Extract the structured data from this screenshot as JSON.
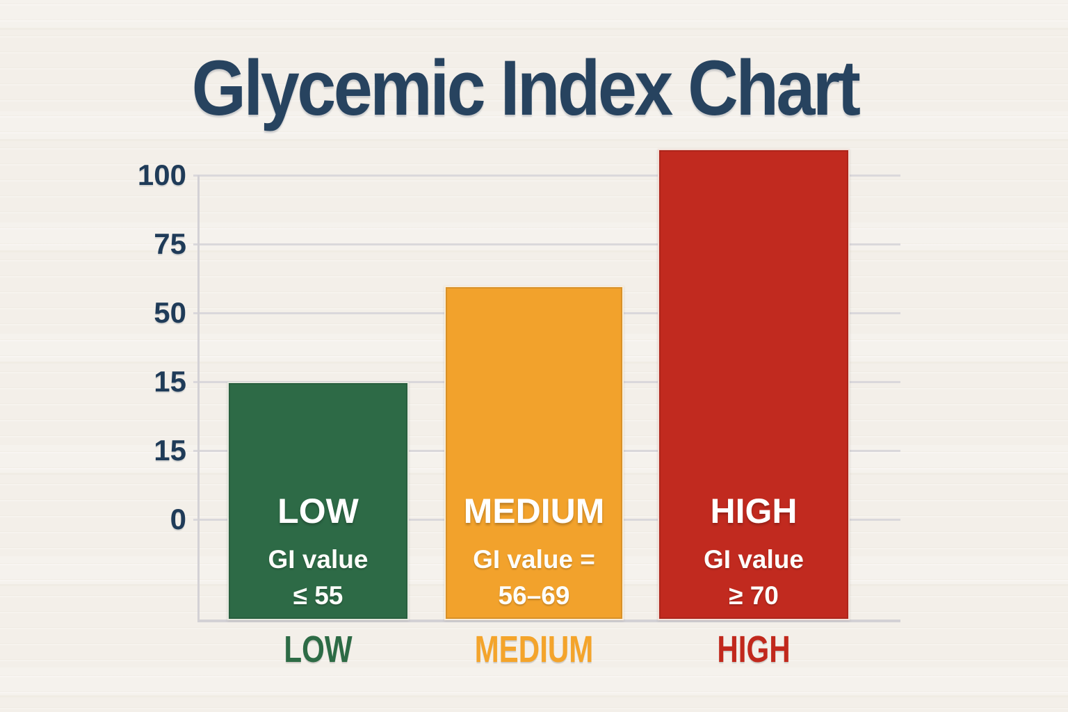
{
  "page": {
    "background_color": "#f3efe9"
  },
  "chart_data": {
    "type": "bar",
    "title": "Glycemic Index Chart",
    "title_color": "#27435f",
    "xlabel": "",
    "ylabel": "",
    "grid": "horizontal gridlines on",
    "legend": "none",
    "gridline_color": "#dad8db",
    "axis_line_color": "#d3d1d5",
    "tick_label_color": "#1f3b58",
    "text_on_bars_color": "#ffffff",
    "y_ticks_top_to_bottom": [
      "100",
      "75",
      "50",
      "15",
      "15",
      "0"
    ],
    "categories": [
      "LOW",
      "MEDIUM",
      "HIGH"
    ],
    "values": [
      15,
      60,
      110
    ],
    "bars": [
      {
        "category": "LOW",
        "value": 15,
        "inner_title": "LOW",
        "inner_line1": "GI value",
        "inner_line2": "≤ 55",
        "color": "#2d6a46",
        "axis_label_color": "#2d6b45"
      },
      {
        "category": "MEDIUM",
        "value": 60,
        "inner_title": "MEDIUM",
        "inner_line1": "GI value =",
        "inner_line2": "56–69",
        "color": "#f2a22c",
        "axis_label_color": "#f4a42b"
      },
      {
        "category": "HIGH",
        "value": 110,
        "inner_title": "HIGH",
        "inner_line1": "GI value",
        "inner_line2": "≥ 70",
        "color": "#c12a1f",
        "axis_label_color": "#c1281c"
      }
    ]
  }
}
